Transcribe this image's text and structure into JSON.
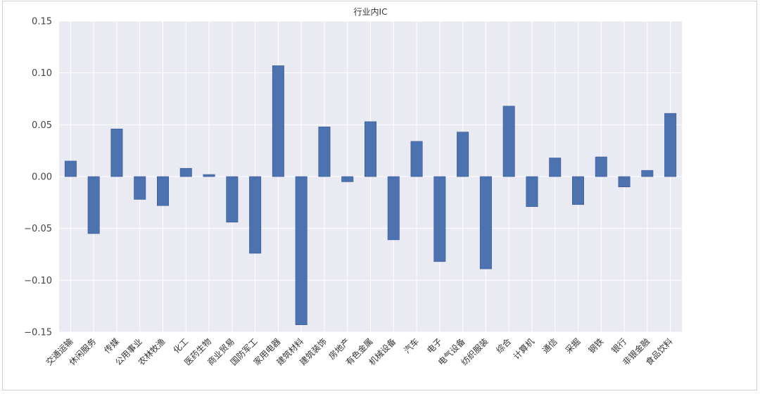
{
  "chart_data": {
    "type": "bar",
    "title": "行业内IC",
    "xlabel": "",
    "ylabel": "",
    "ylim": [
      -0.15,
      0.15
    ],
    "yticks": [
      0.15,
      0.1,
      0.05,
      0.0,
      -0.05,
      -0.1,
      -0.15
    ],
    "ytick_labels": [
      "0.15",
      "0.10",
      "0.05",
      "0.00",
      "−0.05",
      "−0.10",
      "−0.15"
    ],
    "grid": true,
    "legend": "none",
    "categories": [
      "交通运输",
      "休闲服务",
      "传媒",
      "公用事业",
      "农林牧渔",
      "化工",
      "医药生物",
      "商业贸易",
      "国防军工",
      "家用电器",
      "建筑材料",
      "建筑装饰",
      "房地产",
      "有色金属",
      "机械设备",
      "汽车",
      "电子",
      "电气设备",
      "纺织服装",
      "综合",
      "计算机",
      "通信",
      "采掘",
      "钢铁",
      "银行",
      "非银金融",
      "食品饮料"
    ],
    "values": [
      0.015,
      -0.055,
      0.046,
      -0.022,
      -0.028,
      0.008,
      0.002,
      -0.044,
      -0.074,
      0.107,
      -0.143,
      0.048,
      -0.005,
      0.053,
      -0.061,
      0.034,
      -0.082,
      0.043,
      -0.089,
      0.068,
      -0.029,
      0.018,
      -0.027,
      0.019,
      -0.01,
      0.006,
      0.061
    ]
  },
  "colors": {
    "bar": "#4c72b0",
    "bar_edge": "#3a5a96",
    "plot_bg": "#eaeaf2",
    "grid": "#ffffff"
  }
}
